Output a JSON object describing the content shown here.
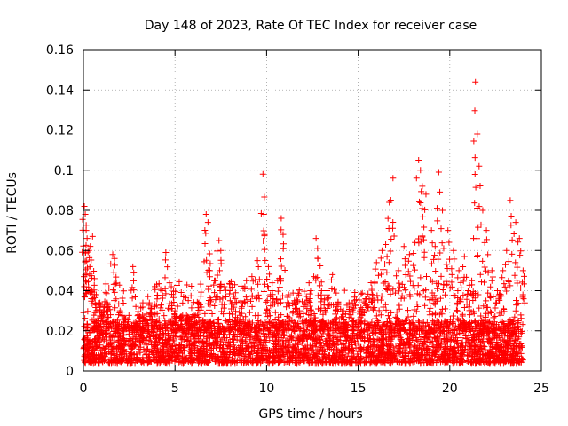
{
  "chart_data": {
    "type": "scatter",
    "title": "Day 148 of 2023, Rate Of TEC Index for receiver case",
    "xlabel": "GPS time / hours",
    "ylabel": "ROTI / TECUs",
    "xlim": [
      0,
      25
    ],
    "ylim": [
      0,
      0.16
    ],
    "xticks": [
      0,
      5,
      10,
      15,
      20,
      25
    ],
    "xtick_labels": [
      "0",
      "5",
      "10",
      "15",
      "20",
      "25"
    ],
    "yticks": [
      0,
      0.02,
      0.04,
      0.06,
      0.08,
      0.1,
      0.12,
      0.14,
      0.16
    ],
    "ytick_labels": [
      "0",
      "0.02",
      "0.04",
      "0.06",
      "0.08",
      "0.1",
      "0.12",
      "0.14",
      "0.16"
    ],
    "grid": true,
    "marker": "+",
    "color": "#ff0000",
    "series": [
      {
        "name": "ROTI",
        "x": [
          0.05,
          0.1,
          0.15,
          0.2,
          0.3,
          0.35,
          0.5,
          0.6,
          0.7,
          0.9,
          1.1,
          1.3,
          1.6,
          1.7,
          2.0,
          2.3,
          2.7,
          3.0,
          3.3,
          3.6,
          4.0,
          4.3,
          4.5,
          4.8,
          5.0,
          5.3,
          5.7,
          6.0,
          6.3,
          6.7,
          6.8,
          6.9,
          7.2,
          7.4,
          7.5,
          7.7,
          8.0,
          8.3,
          8.6,
          8.9,
          9.2,
          9.5,
          9.8,
          9.85,
          10.1,
          10.3,
          10.6,
          10.8,
          10.9,
          11.2,
          11.5,
          11.8,
          12.1,
          12.4,
          12.7,
          12.8,
          13.0,
          13.3,
          13.6,
          13.9,
          14.2,
          14.5,
          14.8,
          15.1,
          15.4,
          15.7,
          16.0,
          16.3,
          16.5,
          16.7,
          16.9,
          17.2,
          17.5,
          17.8,
          18.1,
          18.3,
          18.4,
          18.5,
          18.7,
          19.0,
          19.2,
          19.4,
          19.6,
          19.9,
          20.2,
          20.5,
          20.8,
          21.0,
          21.2,
          21.4,
          21.5,
          21.6,
          21.8,
          22.0,
          22.3,
          22.6,
          22.9,
          23.1,
          23.3,
          23.6,
          23.8,
          24.0
        ],
        "y": [
          0.082,
          0.078,
          0.07,
          0.066,
          0.06,
          0.052,
          0.067,
          0.046,
          0.038,
          0.034,
          0.03,
          0.034,
          0.058,
          0.056,
          0.03,
          0.026,
          0.052,
          0.028,
          0.026,
          0.034,
          0.043,
          0.04,
          0.059,
          0.042,
          0.03,
          0.027,
          0.027,
          0.028,
          0.034,
          0.078,
          0.074,
          0.05,
          0.045,
          0.065,
          0.06,
          0.042,
          0.04,
          0.039,
          0.035,
          0.045,
          0.047,
          0.055,
          0.098,
          0.078,
          0.052,
          0.04,
          0.045,
          0.076,
          0.068,
          0.038,
          0.034,
          0.03,
          0.034,
          0.04,
          0.066,
          0.056,
          0.04,
          0.04,
          0.048,
          0.034,
          0.03,
          0.034,
          0.035,
          0.03,
          0.036,
          0.044,
          0.054,
          0.06,
          0.063,
          0.084,
          0.096,
          0.05,
          0.062,
          0.058,
          0.064,
          0.105,
          0.1,
          0.092,
          0.088,
          0.07,
          0.062,
          0.099,
          0.08,
          0.07,
          0.06,
          0.05,
          0.057,
          0.04,
          0.045,
          0.144,
          0.118,
          0.102,
          0.08,
          0.07,
          0.05,
          0.04,
          0.05,
          0.06,
          0.085,
          0.074,
          0.066,
          0.05
        ]
      }
    ],
    "baseline": {
      "description": "Dense band of ROTI values, mostly between 0.005 and 0.025 TECUs, covering 0 to 24 hours",
      "x_range": [
        0,
        24
      ],
      "y_range": [
        0.004,
        0.025
      ]
    }
  }
}
